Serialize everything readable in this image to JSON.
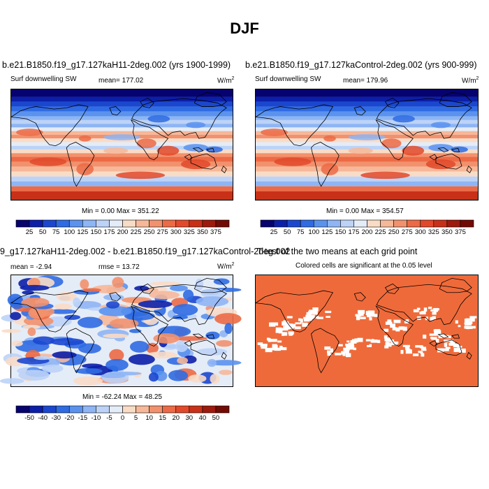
{
  "title": "DJF",
  "panels": {
    "top_left": {
      "title": "b.e21.B1850.f19_g17.127kaH11-2deg.002 (yrs 1900-1999)",
      "variable": "Surf downwelling SW",
      "mean": "mean= 177.02",
      "units_base": "W/m",
      "units_exp": "2",
      "minmax": "Min =   0.00 Max = 351.22"
    },
    "top_right": {
      "title": "b.e21.B1850.f19_g17.127kaControl-2deg.002 (yrs 900-999)",
      "variable": "Surf downwelling SW",
      "mean": "mean= 179.96",
      "units_base": "W/m",
      "units_exp": "2",
      "minmax": "Min =   0.00 Max = 354.57"
    },
    "bottom_left": {
      "title": "9_g17.127kaH11-2deg.002 - b.e21.B1850.f19_g17.127kaControl-2deg.002",
      "mean": "mean =  -2.94",
      "rmse": "rmse =  13.72",
      "units_base": "W/m",
      "units_exp": "2",
      "minmax": "Min = -62.24 Max =  48.25"
    },
    "bottom_right": {
      "title": "T-test of the two means at each grid point",
      "subtitle": "Colored cells are significant at the 0.05 level"
    }
  },
  "colorbars": {
    "field": {
      "labels": [
        "25",
        "50",
        "75",
        "100",
        "125",
        "150",
        "175",
        "200",
        "225",
        "250",
        "275",
        "300",
        "325",
        "350",
        "375"
      ],
      "colors": [
        "#06026e",
        "#0c1fa8",
        "#1b47cf",
        "#2f6be2",
        "#5a92ee",
        "#8eb5f4",
        "#bcd3f7",
        "#e4ecf7",
        "#f9dcc6",
        "#f6b899",
        "#f2916d",
        "#ec6a45",
        "#e2492a",
        "#c83118",
        "#9d1a0c",
        "#730b05"
      ]
    },
    "diff": {
      "labels": [
        "-50",
        "-40",
        "-30",
        "-20",
        "-15",
        "-10",
        "-5",
        "0",
        "5",
        "10",
        "15",
        "20",
        "30",
        "40",
        "50"
      ],
      "colors": [
        "#06026e",
        "#0c1fa8",
        "#1b47cf",
        "#2f6be2",
        "#5a92ee",
        "#8eb5f4",
        "#bcd3f7",
        "#e4ecf7",
        "#f9dcc6",
        "#f6b899",
        "#f2916d",
        "#ec6a45",
        "#e2492a",
        "#c83118",
        "#9d1a0c",
        "#730b05"
      ]
    }
  },
  "colors": {
    "significance": "#ef6a3a",
    "coastline": "#000000"
  }
}
